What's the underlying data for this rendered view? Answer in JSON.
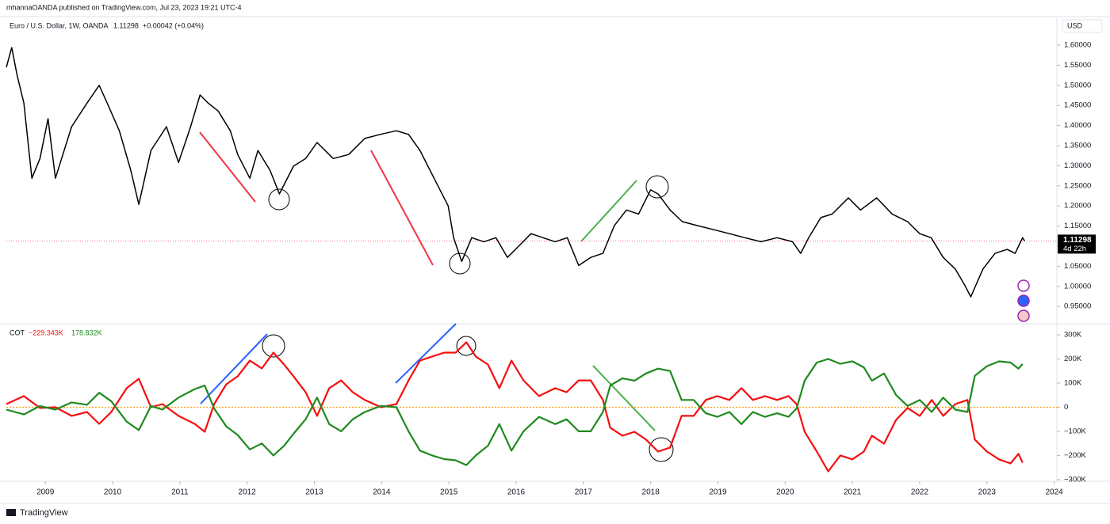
{
  "header": {
    "published": "mhannaOANDA published on TradingView.com, Jul 23, 2023 19:21 UTC-4"
  },
  "footer": {
    "brand": "TradingView"
  },
  "chart_data": [
    {
      "type": "line",
      "title": "Euro / U.S. Dollar, 1W, OANDA",
      "last_price": 1.11298,
      "change_label": "+0.00042 (+0.04%)",
      "countdown": "4d 22h",
      "y_unit": "USD",
      "last_price_color": "#f23645",
      "xlim": [
        2008.42,
        2024.04
      ],
      "ylim": [
        0.909,
        1.669
      ],
      "grid": false,
      "yticks": [
        {
          "value": 1.6,
          "label": "1.60000"
        },
        {
          "value": 1.55,
          "label": "1.55000"
        },
        {
          "value": 1.5,
          "label": "1.50000"
        },
        {
          "value": 1.45,
          "label": "1.45000"
        },
        {
          "value": 1.4,
          "label": "1.40000"
        },
        {
          "value": 1.35,
          "label": "1.35000"
        },
        {
          "value": 1.3,
          "label": "1.30000"
        },
        {
          "value": 1.25,
          "label": "1.25000"
        },
        {
          "value": 1.2,
          "label": "1.20000"
        },
        {
          "value": 1.15,
          "label": "1.15000"
        },
        {
          "value": 1.1,
          "label": "1.10000"
        },
        {
          "value": 1.05,
          "label": "1.05000"
        },
        {
          "value": 1.0,
          "label": "1.00000"
        },
        {
          "value": 0.95,
          "label": "0.95000"
        }
      ],
      "x": [
        2008.42,
        2008.5,
        2008.58,
        2008.68,
        2008.8,
        2008.92,
        2009.04,
        2009.15,
        2009.39,
        2009.62,
        2009.8,
        2009.92,
        2010.1,
        2010.27,
        2010.39,
        2010.57,
        2010.8,
        2010.98,
        2011.16,
        2011.3,
        2011.42,
        2011.57,
        2011.75,
        2011.86,
        2012.04,
        2012.16,
        2012.34,
        2012.48,
        2012.69,
        2012.87,
        2013.04,
        2013.28,
        2013.51,
        2013.75,
        2013.98,
        2014.22,
        2014.4,
        2014.57,
        2014.81,
        2014.99,
        2015.07,
        2015.19,
        2015.34,
        2015.52,
        2015.7,
        2015.87,
        2016.05,
        2016.22,
        2016.4,
        2016.58,
        2016.76,
        2016.93,
        2017.11,
        2017.29,
        2017.46,
        2017.64,
        2017.82,
        2018.0,
        2018.11,
        2018.29,
        2018.47,
        2018.7,
        2018.94,
        2019.17,
        2019.4,
        2019.64,
        2019.88,
        2020.11,
        2020.23,
        2020.35,
        2020.53,
        2020.7,
        2020.94,
        2021.12,
        2021.36,
        2021.59,
        2021.82,
        2022.0,
        2022.17,
        2022.35,
        2022.53,
        2022.67,
        2022.76,
        2022.94,
        2023.12,
        2023.3,
        2023.42,
        2023.53,
        2023.56
      ],
      "series": [
        {
          "color": "#000000",
          "values": [
            1.545,
            1.594,
            1.525,
            1.456,
            1.269,
            1.318,
            1.417,
            1.269,
            1.397,
            1.456,
            1.5,
            1.456,
            1.387,
            1.289,
            1.204,
            1.338,
            1.397,
            1.308,
            1.397,
            1.476,
            1.456,
            1.436,
            1.387,
            1.328,
            1.269,
            1.338,
            1.289,
            1.23,
            1.299,
            1.318,
            1.358,
            1.318,
            1.328,
            1.368,
            1.378,
            1.387,
            1.378,
            1.338,
            1.259,
            1.2,
            1.121,
            1.062,
            1.121,
            1.111,
            1.121,
            1.072,
            1.102,
            1.131,
            1.121,
            1.111,
            1.121,
            1.052,
            1.072,
            1.082,
            1.151,
            1.19,
            1.18,
            1.24,
            1.23,
            1.19,
            1.161,
            1.151,
            1.141,
            1.131,
            1.121,
            1.111,
            1.121,
            1.111,
            1.082,
            1.121,
            1.171,
            1.18,
            1.22,
            1.19,
            1.22,
            1.18,
            1.161,
            1.131,
            1.121,
            1.072,
            1.043,
            1.003,
            0.974,
            1.043,
            1.082,
            1.092,
            1.082,
            1.121,
            1.113
          ]
        }
      ]
    },
    {
      "type": "line",
      "title": "COT",
      "zero_line_color": "#ff9800",
      "xlim": [
        2008.42,
        2024.04
      ],
      "ylim": [
        -297000,
        342600
      ],
      "grid": false,
      "yticks": [
        {
          "value": 300000,
          "label": "300K"
        },
        {
          "value": 200000,
          "label": "200K"
        },
        {
          "value": 100000,
          "label": "100K"
        },
        0,
        {
          "value": -100000,
          "label": "−100K"
        },
        {
          "value": -200000,
          "label": "−200K"
        },
        {
          "value": -300000,
          "label": "−300K"
        }
      ],
      "xticks": [
        2009,
        2010,
        2011,
        2012,
        2013,
        2014,
        2015,
        2016,
        2017,
        2018,
        2019,
        2020,
        2021,
        2022,
        2023,
        2024
      ],
      "x": [
        2008.42,
        2008.68,
        2008.92,
        2009.15,
        2009.39,
        2009.62,
        2009.8,
        2009.98,
        2010.21,
        2010.39,
        2010.57,
        2010.74,
        2010.98,
        2011.22,
        2011.37,
        2011.51,
        2011.69,
        2011.86,
        2012.04,
        2012.22,
        2012.39,
        2012.55,
        2012.69,
        2012.87,
        2013.04,
        2013.22,
        2013.4,
        2013.57,
        2013.75,
        2013.99,
        2014.22,
        2014.4,
        2014.57,
        2014.75,
        2014.93,
        2015.1,
        2015.26,
        2015.4,
        2015.58,
        2015.75,
        2015.93,
        2016.11,
        2016.34,
        2016.58,
        2016.75,
        2016.93,
        2017.11,
        2017.29,
        2017.4,
        2017.58,
        2017.76,
        2017.93,
        2018.11,
        2018.29,
        2018.46,
        2018.64,
        2018.82,
        2018.99,
        2019.17,
        2019.35,
        2019.52,
        2019.7,
        2019.88,
        2020.05,
        2020.17,
        2020.29,
        2020.47,
        2020.64,
        2020.82,
        2021.0,
        2021.17,
        2021.29,
        2021.47,
        2021.65,
        2021.82,
        2022.0,
        2022.18,
        2022.35,
        2022.53,
        2022.71,
        2022.82,
        2023.0,
        2023.18,
        2023.35,
        2023.47,
        2023.53
      ],
      "series": [
        {
          "color": "#f50f0f",
          "last_label": "−229.343K",
          "values": [
            13000,
            46000,
            -3000,
            0,
            -36000,
            -20000,
            -69000,
            -20000,
            79000,
            118000,
            0,
            13000,
            -36000,
            -69000,
            -102000,
            13000,
            95000,
            128000,
            193000,
            161000,
            226000,
            177000,
            128000,
            62000,
            -36000,
            79000,
            111000,
            62000,
            30000,
            0,
            13000,
            111000,
            193000,
            210000,
            226000,
            226000,
            269000,
            210000,
            177000,
            79000,
            193000,
            111000,
            46000,
            79000,
            62000,
            111000,
            111000,
            30000,
            -85000,
            -118000,
            -102000,
            -134000,
            -184000,
            -167000,
            -36000,
            -36000,
            30000,
            46000,
            30000,
            79000,
            30000,
            46000,
            30000,
            46000,
            13000,
            -102000,
            -184000,
            -266000,
            -200000,
            -216000,
            -184000,
            -118000,
            -151000,
            -52000,
            -3000,
            -36000,
            30000,
            -36000,
            13000,
            30000,
            -134000,
            -184000,
            -216000,
            -233000,
            -193000,
            -229343
          ]
        },
        {
          "color": "#1f8a1f",
          "last_label": "178.832K",
          "values": [
            -10000,
            -30000,
            5000,
            -10000,
            20000,
            10000,
            60000,
            25000,
            -60000,
            -95000,
            5000,
            -10000,
            40000,
            75000,
            90000,
            -5000,
            -80000,
            -115000,
            -175000,
            -150000,
            -200000,
            -160000,
            -110000,
            -50000,
            40000,
            -70000,
            -100000,
            -50000,
            -20000,
            5000,
            0,
            -100000,
            -180000,
            -200000,
            -215000,
            -220000,
            -240000,
            -200000,
            -160000,
            -70000,
            -180000,
            -100000,
            -40000,
            -70000,
            -50000,
            -100000,
            -100000,
            -20000,
            90000,
            120000,
            110000,
            140000,
            160000,
            150000,
            30000,
            30000,
            -25000,
            -40000,
            -20000,
            -70000,
            -20000,
            -40000,
            -25000,
            -40000,
            -5000,
            110000,
            185000,
            200000,
            180000,
            190000,
            165000,
            110000,
            140000,
            50000,
            5000,
            30000,
            -20000,
            40000,
            -10000,
            -20000,
            130000,
            170000,
            190000,
            185000,
            160000,
            178832
          ]
        }
      ]
    }
  ]
}
